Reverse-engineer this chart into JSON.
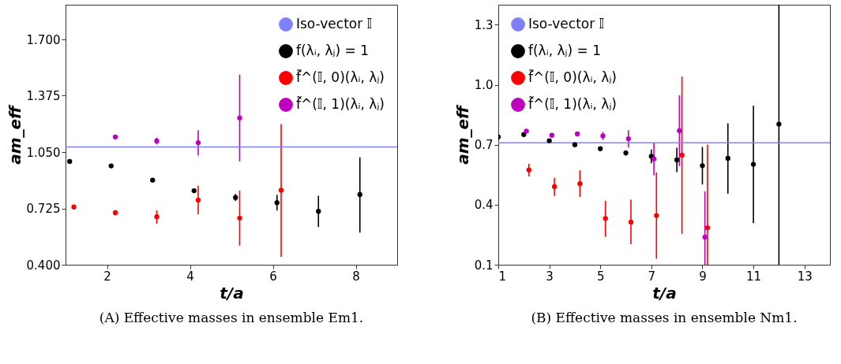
{
  "chart_data": [
    {
      "type": "scatter",
      "xlabel": "t/a",
      "ylabel": "am_eff",
      "xlim": [
        1,
        9
      ],
      "ylim": [
        0.4,
        1.9
      ],
      "xticks": [
        2,
        4,
        6,
        8
      ],
      "yticks": [
        {
          "value": 0.4,
          "label": "0.400"
        },
        {
          "value": 0.725,
          "label": "0.725"
        },
        {
          "value": 1.05,
          "label": "1.050"
        },
        {
          "value": 1.375,
          "label": "1.375"
        },
        {
          "value": 1.7,
          "label": "1.700"
        }
      ],
      "marker": "circle",
      "grid": false,
      "legend": "top right",
      "ref_lines": [
        {
          "axis": "y",
          "value": 1.079,
          "label": "Iso-vector 𝕀",
          "color": "#8080ff"
        }
      ],
      "series": [
        {
          "name": "f(λᵢ, λⱼ) = 1",
          "color": "#000000",
          "x": [
            1.1,
            2.1,
            3.1,
            4.1,
            5.1,
            6.1,
            7.1,
            8.1
          ],
          "values": [
            0.996,
            0.97,
            0.888,
            0.827,
            0.788,
            0.758,
            0.708,
            0.805
          ],
          "errors": [
            null,
            null,
            null,
            [
              0.817,
              0.837
            ],
            [
              0.768,
              0.808
            ],
            [
              0.713,
              0.803
            ],
            [
              0.617,
              0.798
            ],
            [
              0.585,
              1.02
            ]
          ]
        },
        {
          "name": "f̃^(𝕀, 0)(λᵢ, λⱼ)",
          "color": "#ff0000",
          "x": [
            1.2,
            2.2,
            3.2,
            4.2,
            5.2,
            6.2
          ],
          "values": [
            0.733,
            0.7,
            0.676,
            0.773,
            0.669,
            0.83
          ],
          "errors": [
            null,
            [
              0.685,
              0.715
            ],
            [
              0.637,
              0.713
            ],
            [
              0.691,
              0.856
            ],
            [
              0.51,
              0.828
            ],
            [
              0.446,
              1.211
            ]
          ]
        },
        {
          "name": "f̃^(𝕀, 1)(λᵢ, λⱼ)",
          "color": "#bf00bf",
          "x": [
            2.2,
            3.2,
            4.2,
            5.2
          ],
          "values": [
            1.137,
            1.114,
            1.104,
            1.247
          ],
          "errors": [
            null,
            [
              1.094,
              1.134
            ],
            [
              1.031,
              1.176
            ],
            [
              0.996,
              1.497
            ]
          ]
        }
      ],
      "annotations": [
        "(A) Effective masses in ensemble Em1."
      ]
    },
    {
      "type": "scatter",
      "xlabel": "t/a",
      "ylabel": "am_eff",
      "xlim": [
        1,
        14
      ],
      "ylim": [
        0.1,
        1.4
      ],
      "xticks": [
        1,
        3,
        5,
        7,
        9,
        11,
        13
      ],
      "yticks": [
        0.1,
        0.4,
        0.7,
        {
          "value": 1.0,
          "label": "1.0"
        },
        1.3
      ],
      "marker": "circle",
      "grid": false,
      "legend": "top left",
      "ref_lines": [
        {
          "axis": "y",
          "value": 0.71,
          "label": "Iso-vector 𝕀",
          "color": "#8080ff"
        }
      ],
      "series": [
        {
          "name": "f(λᵢ, λⱼ) = 1",
          "color": "#000000",
          "x": [
            1,
            2,
            3,
            4,
            5,
            6,
            7,
            8,
            9,
            10,
            11,
            12
          ],
          "values": [
            0.739,
            0.751,
            0.72,
            0.7,
            0.68,
            0.659,
            0.642,
            0.624,
            0.595,
            0.632,
            0.602,
            0.803
          ],
          "errors": [
            null,
            null,
            null,
            null,
            [
              0.67,
              0.69
            ],
            [
              0.646,
              0.672
            ],
            [
              0.607,
              0.676
            ],
            [
              0.563,
              0.685
            ],
            [
              0.501,
              0.689
            ],
            [
              0.455,
              0.807
            ],
            [
              0.308,
              0.895
            ],
            [
              0.1,
              1.4
            ]
          ]
        },
        {
          "name": "f̃^(𝕀, 0)(λᵢ, λⱼ)",
          "color": "#ff0000",
          "x": [
            2.2,
            3.2,
            4.2,
            5.2,
            6.2,
            7.2,
            8.2,
            9.2
          ],
          "values": [
            0.574,
            0.49,
            0.505,
            0.331,
            0.313,
            0.346,
            0.648,
            0.285
          ],
          "errors": [
            [
              0.541,
              0.605
            ],
            [
              0.444,
              0.534
            ],
            [
              0.439,
              0.572
            ],
            [
              0.239,
              0.42
            ],
            [
              0.202,
              0.425
            ],
            [
              0.13,
              0.562
            ],
            [
              0.254,
              1.041
            ],
            [
              0.1,
              0.701
            ]
          ]
        },
        {
          "name": "f̃^(𝕀, 1)(λᵢ, λⱼ)",
          "color": "#bf00bf",
          "x": [
            2.1,
            3.1,
            4.1,
            5.1,
            6.1,
            7.1,
            8.1,
            9.1
          ],
          "values": [
            0.768,
            0.747,
            0.754,
            0.744,
            0.73,
            0.629,
            0.77,
            0.238
          ],
          "errors": [
            null,
            null,
            [
              0.744,
              0.764
            ],
            [
              0.724,
              0.764
            ],
            [
              0.686,
              0.773
            ],
            [
              0.547,
              0.71
            ],
            [
              0.593,
              0.947
            ],
            [
              0.1,
              0.467
            ]
          ]
        }
      ],
      "annotations": [
        "(B) Effective masses in ensemble Nm1."
      ]
    }
  ]
}
